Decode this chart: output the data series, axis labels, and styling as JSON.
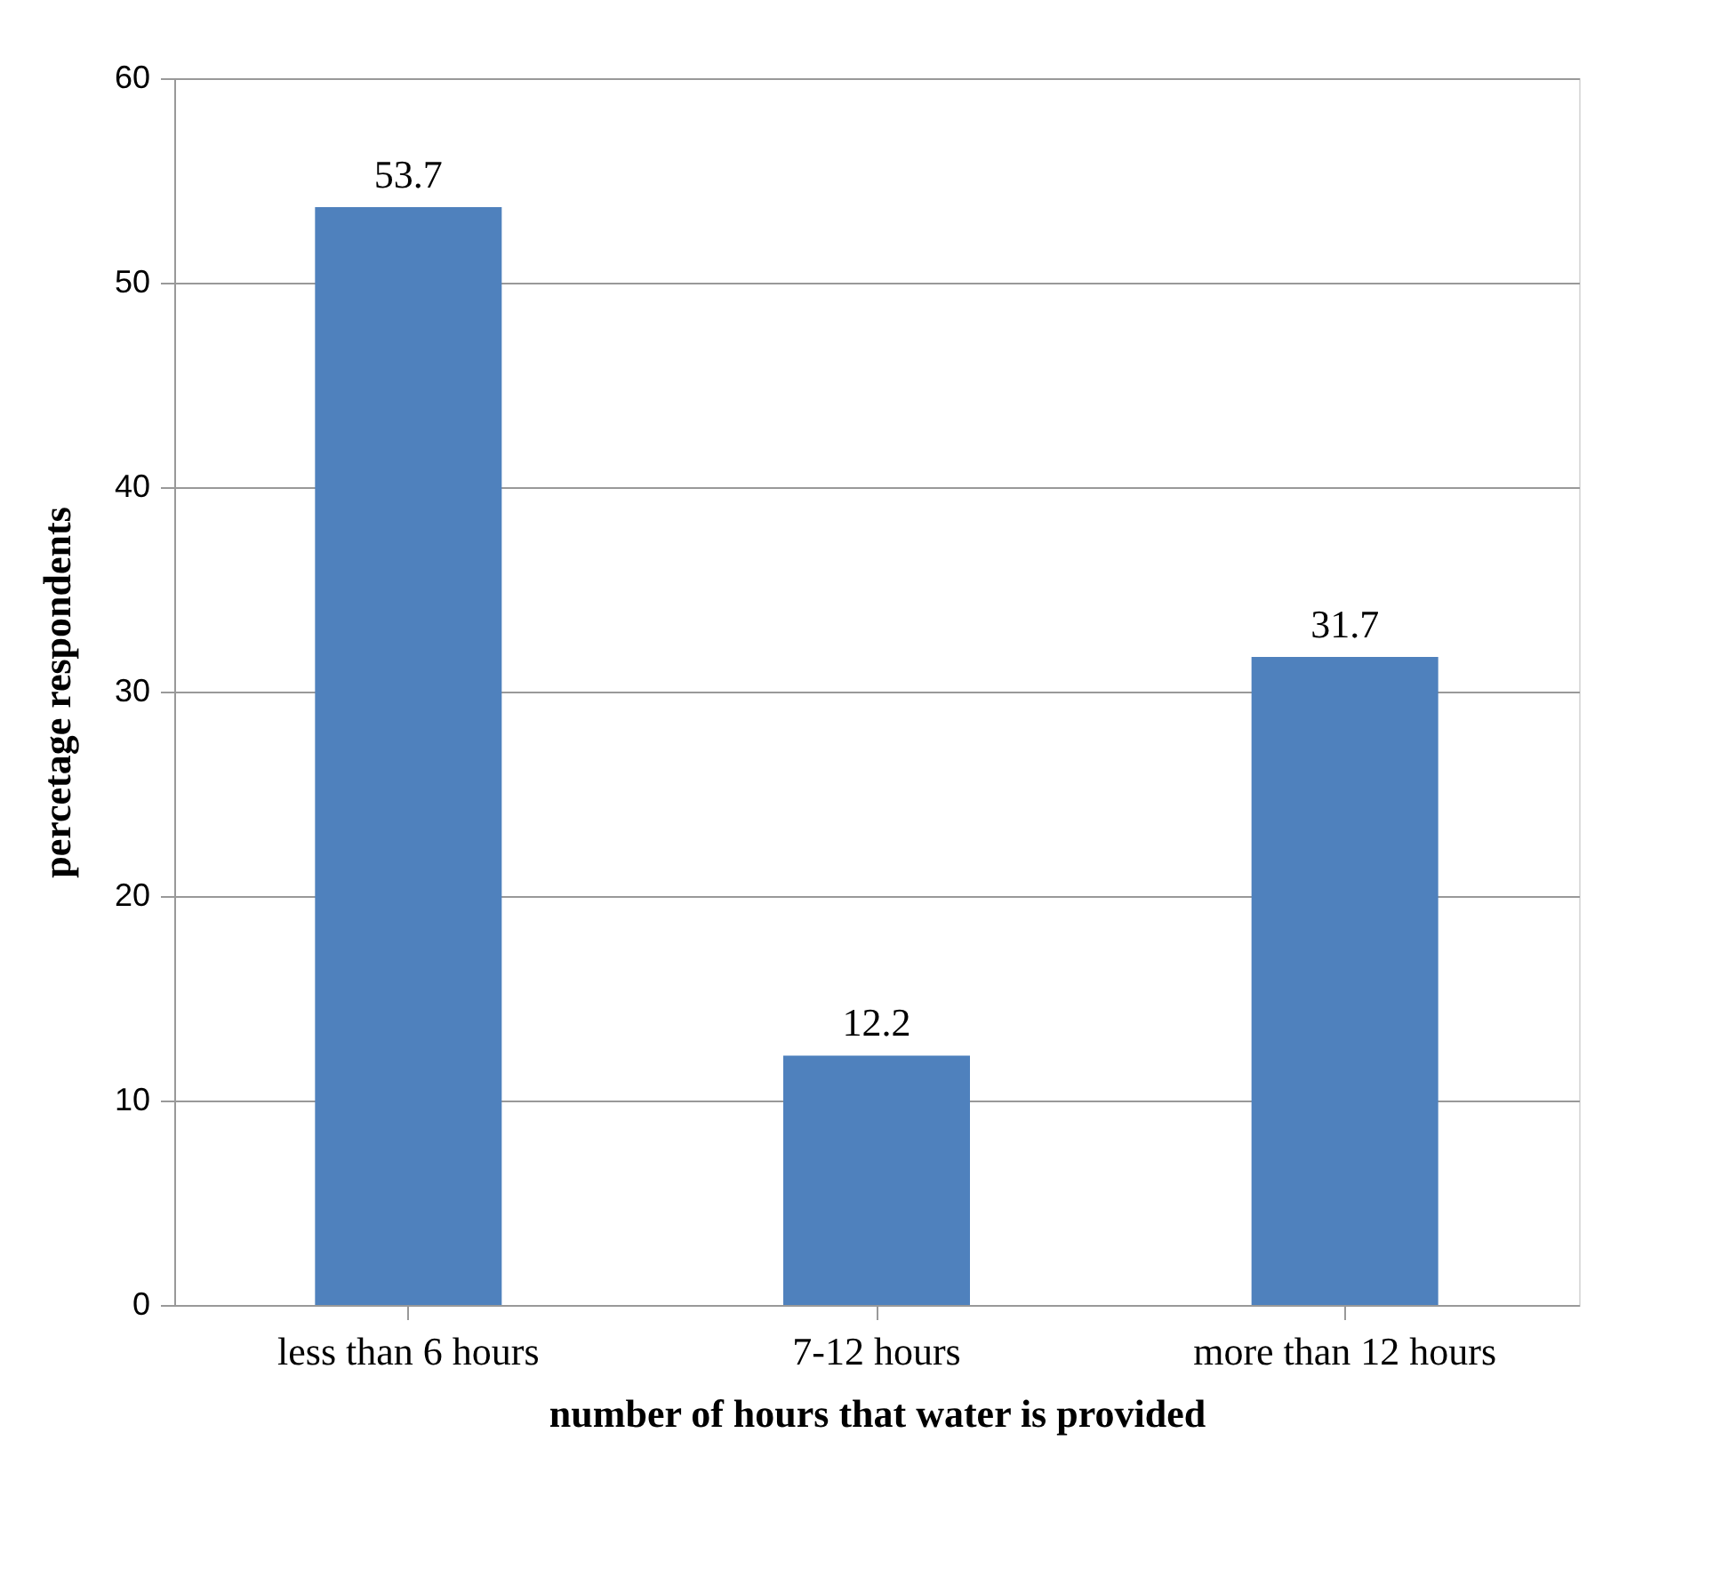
{
  "chart_data": {
    "type": "bar",
    "xlabel": "number of hours that water is provided",
    "ylabel": "percetage respondents",
    "categories": [
      "less than 6 hours",
      "7-12 hours",
      "more than 12 hours"
    ],
    "values": [
      53.7,
      12.2,
      31.7
    ],
    "color": "#4f81bd",
    "ylim": [
      0,
      60
    ],
    "yticks": [
      0,
      10,
      20,
      30,
      40,
      50,
      60
    ],
    "grid": "y",
    "data_labels": true
  }
}
